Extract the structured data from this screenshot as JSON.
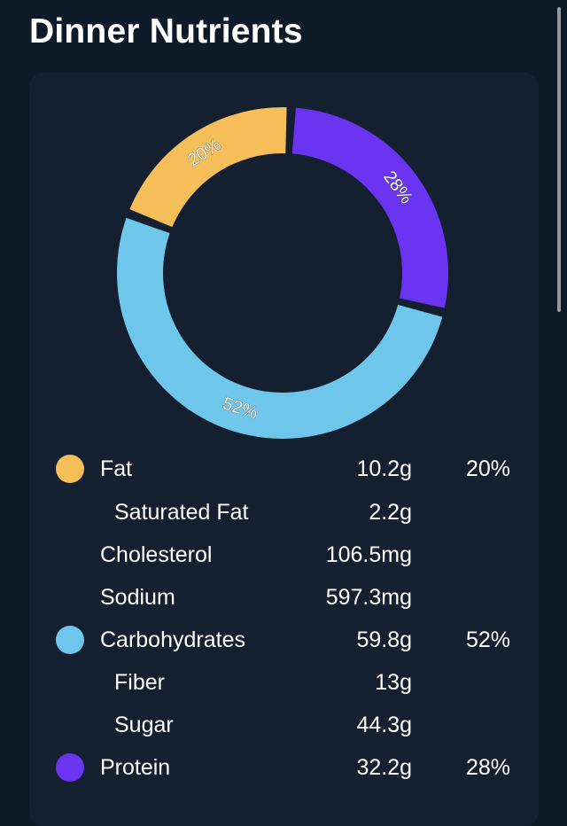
{
  "page": {
    "title": "Dinner Nutrients"
  },
  "colors": {
    "background": "#0f1a28",
    "card": "#14202f",
    "fat": "#f5be59",
    "carbohydrates": "#6ec6ea",
    "protein": "#6a34f0",
    "text": "#ffffff"
  },
  "chart_data": {
    "type": "pie",
    "categories": [
      "Fat",
      "Carbohydrates",
      "Protein"
    ],
    "values": [
      20,
      52,
      28
    ],
    "data_labels": [
      "20%",
      "52%",
      "28%"
    ],
    "colors": [
      "#f5be59",
      "#6ec6ea",
      "#6a34f0"
    ]
  },
  "nutrients": [
    {
      "label": "Fat",
      "amount": "10.2g",
      "percent": "20%",
      "icon": "yellow-circle-icon",
      "color": "#f5be59"
    },
    {
      "label": "Saturated Fat",
      "amount": "2.2g",
      "sub": true
    },
    {
      "label": "Cholesterol",
      "amount": "106.5mg"
    },
    {
      "label": "Sodium",
      "amount": "597.3mg"
    },
    {
      "label": "Carbohydrates",
      "amount": "59.8g",
      "percent": "52%",
      "icon": "blue-circle-icon",
      "color": "#6ec6ea"
    },
    {
      "label": "Fiber",
      "amount": "13g",
      "sub": true
    },
    {
      "label": "Sugar",
      "amount": "44.3g",
      "sub": true
    },
    {
      "label": "Protein",
      "amount": "32.2g",
      "percent": "28%",
      "icon": "purple-circle-icon",
      "color": "#6a34f0"
    }
  ]
}
